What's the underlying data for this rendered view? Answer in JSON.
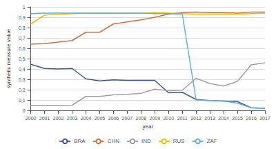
{
  "chart_data": {
    "type": "line",
    "xlabel": "year",
    "ylabel": "synthetic measure value",
    "x": [
      2000,
      2001,
      2002,
      2003,
      2004,
      2005,
      2006,
      2007,
      2008,
      2009,
      2010,
      2011,
      2012,
      2013,
      2014,
      2015,
      2016,
      2017
    ],
    "series": [
      {
        "name": "BRA",
        "color": "#3a5899",
        "values": [
          0.445,
          0.405,
          0.4,
          0.405,
          0.305,
          0.285,
          0.295,
          0.29,
          0.29,
          0.29,
          0.17,
          0.175,
          0.105,
          0.095,
          0.09,
          0.085,
          0.025,
          0.02
        ]
      },
      {
        "name": "CHN",
        "color": "#d4703a",
        "values": [
          0.64,
          0.645,
          0.66,
          0.675,
          0.755,
          0.755,
          0.835,
          0.855,
          0.875,
          0.9,
          0.93,
          0.945,
          0.95,
          0.945,
          0.945,
          0.94,
          0.95,
          0.95
        ]
      },
      {
        "name": "IND",
        "color": "#a0a0a0",
        "values": [
          0.048,
          0.048,
          0.048,
          0.05,
          0.135,
          0.135,
          0.15,
          0.155,
          0.165,
          0.205,
          0.19,
          0.195,
          0.31,
          0.26,
          0.235,
          0.28,
          0.44,
          0.46
        ]
      },
      {
        "name": "RUS",
        "color": "#e8c000",
        "values": [
          0.835,
          0.92,
          0.93,
          0.935,
          0.94,
          0.94,
          0.94,
          0.94,
          0.94,
          0.945,
          0.94,
          0.935,
          0.93,
          0.93,
          0.93,
          0.93,
          0.935,
          0.94
        ]
      },
      {
        "name": "ZAF",
        "color": "#5ab4d4",
        "values": [
          0.935,
          0.94,
          0.94,
          0.94,
          0.94,
          0.94,
          0.94,
          0.94,
          0.94,
          0.935,
          0.935,
          0.93,
          0.1,
          0.095,
          0.09,
          0.07,
          0.025,
          0.02
        ]
      }
    ],
    "xlim": [
      2000,
      2017
    ],
    "xticks": [
      2000,
      2001,
      2002,
      2003,
      2004,
      2005,
      2006,
      2007,
      2008,
      2009,
      2010,
      2011,
      2012,
      2013,
      2014,
      2015,
      2016,
      2017
    ],
    "ylim": [
      0,
      1.0
    ],
    "yticks": [
      0,
      {
        "value": 0.1,
        "label": "0,1"
      },
      {
        "value": 0.2,
        "label": "0,2"
      },
      {
        "value": 0.3,
        "label": "0,3"
      },
      {
        "value": 0.4,
        "label": "0,4"
      },
      {
        "value": 0.5,
        "label": "0,5"
      },
      {
        "value": 0.6,
        "label": "0,6"
      },
      {
        "value": 0.7,
        "label": "0,7"
      },
      {
        "value": 0.8,
        "label": "0,8"
      },
      {
        "value": 0.9,
        "label": "0,9"
      },
      1
    ],
    "grid": true,
    "legend": "bottom"
  }
}
